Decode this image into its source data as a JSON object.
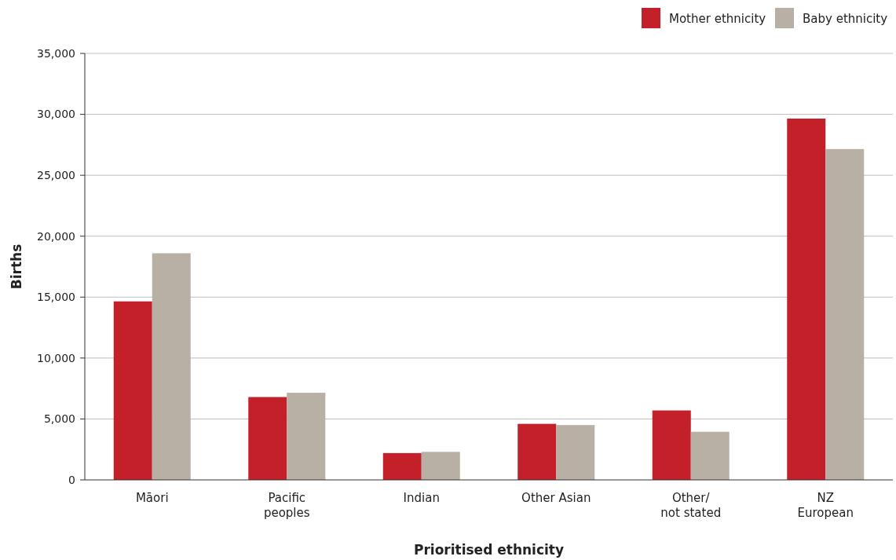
{
  "chart_data": {
    "type": "bar",
    "xlabel": "Prioritised ethnicity",
    "ylabel": "Births",
    "categories": [
      "Māori",
      "Pacific\npeoples",
      "Indian",
      "Other Asian",
      "Other/\nnot stated",
      "NZ\nEuropean"
    ],
    "series": [
      {
        "name": "Mother ethnicity",
        "color": "#c4202a",
        "values": [
          14650,
          6800,
          2200,
          4600,
          5700,
          29650
        ]
      },
      {
        "name": "Baby ethnicity",
        "color": "#b8b0a5",
        "values": [
          18600,
          7150,
          2300,
          4500,
          3950,
          27150
        ]
      }
    ],
    "ylim": [
      0,
      35000
    ],
    "yticks": [
      {
        "value": 0,
        "label": "0"
      },
      {
        "value": 5000,
        "label": "5,000"
      },
      {
        "value": 10000,
        "label": "10,000"
      },
      {
        "value": 15000,
        "label": "15,000"
      },
      {
        "value": 20000,
        "label": "20,000"
      },
      {
        "value": 25000,
        "label": "25,000"
      },
      {
        "value": 30000,
        "label": "30,000"
      },
      {
        "value": 35000,
        "label": "35,000"
      }
    ],
    "grid": "y",
    "legend": "top right"
  }
}
